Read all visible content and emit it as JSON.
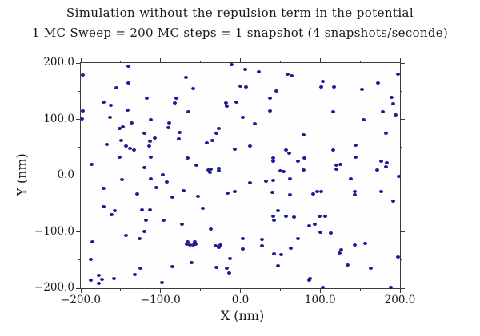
{
  "title": "Simulation without the repulsion term in the potential",
  "subtitle": "1 MC Sweep = 200 MC steps = 1 snapshot (4 snapshots/seconde)",
  "colors": {
    "marker": "#1c1c96",
    "axis": "#3a3a3a",
    "background": "#ffffff",
    "text": "#1a1a1a"
  },
  "chart_data": {
    "type": "scatter",
    "title": "Simulation without the repulsion term in the potential",
    "subtitle": "1 MC Sweep = 200 MC steps = 1 snapshot (4 snapshots/seconde)",
    "xlabel": "X (nm)",
    "ylabel": "Y (nm)",
    "xlim": [
      -200,
      200
    ],
    "ylim": [
      -200,
      200
    ],
    "grid": false,
    "legend": null,
    "marker_color": "#1c1c96",
    "x_major_ticks": [
      -200,
      -100,
      0,
      100,
      200
    ],
    "y_major_ticks": [
      -200,
      -100,
      0,
      100,
      200
    ],
    "x_minor_ticks": [
      -150,
      -50,
      50,
      150
    ],
    "y_minor_ticks": [
      -150,
      -50,
      50,
      150
    ],
    "x_tick_labels": [
      "−200.0",
      "−100.0",
      "0.0",
      "100.0",
      "200.0"
    ],
    "y_tick_labels": [
      "−200.0",
      "−100.0",
      "0.0",
      "100.0",
      "200.0"
    ],
    "points": [
      [
        -197,
        179
      ],
      [
        -140,
        194
      ],
      [
        -68,
        174
      ],
      [
        -155,
        156
      ],
      [
        -140,
        165
      ],
      [
        -59,
        154
      ],
      [
        -117,
        138
      ],
      [
        -80,
        137
      ],
      [
        -82,
        129
      ],
      [
        -171,
        131
      ],
      [
        -162,
        125
      ],
      [
        -18,
        129
      ],
      [
        -17,
        124
      ],
      [
        -5,
        131
      ],
      [
        -198,
        115
      ],
      [
        -141,
        117
      ],
      [
        -65,
        114
      ],
      [
        -199,
        101
      ],
      [
        -163,
        104
      ],
      [
        -112,
        100
      ],
      [
        -136,
        94
      ],
      [
        -89,
        94
      ],
      [
        -147,
        87
      ],
      [
        -151,
        83
      ],
      [
        -90,
        85
      ],
      [
        -120,
        75
      ],
      [
        -27,
        84
      ],
      [
        -30,
        75
      ],
      [
        -76,
        77
      ],
      [
        -149,
        62
      ],
      [
        -167,
        56
      ],
      [
        -113,
        61
      ],
      [
        -107,
        67
      ],
      [
        -77,
        65
      ],
      [
        -35,
        63
      ],
      [
        -42,
        58
      ],
      [
        -114,
        52
      ],
      [
        -143,
        52
      ],
      [
        -138,
        48
      ],
      [
        -133,
        46
      ],
      [
        -7,
        47
      ],
      [
        -151,
        33
      ],
      [
        -112,
        32
      ],
      [
        -66,
        31
      ],
      [
        -186,
        20
      ],
      [
        -120,
        14
      ],
      [
        -55,
        18
      ],
      [
        -40,
        10
      ],
      [
        -37,
        11
      ],
      [
        -27,
        13
      ],
      [
        -27,
        8
      ],
      [
        -97,
        2
      ],
      [
        -38,
        6
      ],
      [
        -11,
        197
      ],
      [
        6,
        188
      ],
      [
        23,
        185
      ],
      [
        59,
        180
      ],
      [
        64,
        178
      ],
      [
        197,
        180
      ],
      [
        103,
        168
      ],
      [
        101,
        157
      ],
      [
        117,
        157
      ],
      [
        0,
        159
      ],
      [
        7,
        157
      ],
      [
        152,
        153
      ],
      [
        172,
        164
      ],
      [
        45,
        150
      ],
      [
        37,
        138
      ],
      [
        189,
        139
      ],
      [
        191,
        128
      ],
      [
        37,
        115
      ],
      [
        116,
        114
      ],
      [
        178,
        114
      ],
      [
        3,
        103
      ],
      [
        194,
        108
      ],
      [
        18,
        92
      ],
      [
        154,
        100
      ],
      [
        79,
        72
      ],
      [
        182,
        75
      ],
      [
        12,
        52
      ],
      [
        144,
        54
      ],
      [
        57,
        46
      ],
      [
        61,
        40
      ],
      [
        116,
        45
      ],
      [
        41,
        31
      ],
      [
        41,
        26
      ],
      [
        144,
        33
      ],
      [
        72,
        25
      ],
      [
        80,
        31
      ],
      [
        176,
        26
      ],
      [
        183,
        23
      ],
      [
        120,
        18
      ],
      [
        125,
        20
      ],
      [
        120,
        12
      ],
      [
        50,
        9
      ],
      [
        54,
        7
      ],
      [
        79,
        10
      ],
      [
        171,
        10
      ],
      [
        182,
        16
      ],
      [
        198,
        -1
      ],
      [
        -148,
        -7
      ],
      [
        -112,
        -5
      ],
      [
        -171,
        -22
      ],
      [
        -92,
        -12
      ],
      [
        -105,
        -21
      ],
      [
        -129,
        -33
      ],
      [
        -71,
        -27
      ],
      [
        -85,
        -38
      ],
      [
        -53,
        -37
      ],
      [
        -16,
        -31
      ],
      [
        -7,
        -29
      ],
      [
        -171,
        -56
      ],
      [
        -157,
        -62
      ],
      [
        -161,
        -69
      ],
      [
        -123,
        -61
      ],
      [
        -113,
        -61
      ],
      [
        -47,
        -58
      ],
      [
        -118,
        -80
      ],
      [
        -96,
        -80
      ],
      [
        -73,
        -86
      ],
      [
        -37,
        -95
      ],
      [
        -120,
        -99
      ],
      [
        -143,
        -106
      ],
      [
        -126,
        -112
      ],
      [
        -185,
        -118
      ],
      [
        -66,
        -118
      ],
      [
        -57,
        -118
      ],
      [
        -67,
        -122
      ],
      [
        -63,
        -123
      ],
      [
        -59,
        -123
      ],
      [
        -56,
        -122
      ],
      [
        -31,
        -125
      ],
      [
        -27,
        -127
      ],
      [
        -25,
        -123
      ],
      [
        -187,
        -149
      ],
      [
        -13,
        -148
      ],
      [
        -61,
        -154
      ],
      [
        -85,
        -162
      ],
      [
        -125,
        -164
      ],
      [
        -30,
        -163
      ],
      [
        -17,
        -165
      ],
      [
        -14,
        -173
      ],
      [
        -132,
        -176
      ],
      [
        -177,
        -178
      ],
      [
        -173,
        -184
      ],
      [
        -187,
        -186
      ],
      [
        -177,
        -192
      ],
      [
        -158,
        -183
      ],
      [
        -98,
        -190
      ],
      [
        12,
        -13
      ],
      [
        32,
        -10
      ],
      [
        41,
        -9
      ],
      [
        62,
        -6
      ],
      [
        138,
        -6
      ],
      [
        40,
        -30
      ],
      [
        62,
        -34
      ],
      [
        91,
        -33
      ],
      [
        96,
        -29
      ],
      [
        101,
        -28
      ],
      [
        143,
        -28
      ],
      [
        143,
        -34
      ],
      [
        176,
        -28
      ],
      [
        191,
        -45
      ],
      [
        47,
        -62
      ],
      [
        41,
        -72
      ],
      [
        42,
        -80
      ],
      [
        57,
        -72
      ],
      [
        67,
        -74
      ],
      [
        99,
        -72
      ],
      [
        106,
        -72
      ],
      [
        93,
        -86
      ],
      [
        86,
        -89
      ],
      [
        100,
        -100
      ],
      [
        113,
        -102
      ],
      [
        3,
        -112
      ],
      [
        27,
        -113
      ],
      [
        72,
        -112
      ],
      [
        3,
        -131
      ],
      [
        27,
        -125
      ],
      [
        143,
        -123
      ],
      [
        156,
        -120
      ],
      [
        63,
        -129
      ],
      [
        42,
        -139
      ],
      [
        51,
        -140
      ],
      [
        126,
        -132
      ],
      [
        124,
        -138
      ],
      [
        197,
        -144
      ],
      [
        47,
        -160
      ],
      [
        134,
        -159
      ],
      [
        163,
        -165
      ],
      [
        87,
        -183
      ],
      [
        86,
        -186
      ],
      [
        103,
        -199
      ],
      [
        188,
        -199
      ]
    ]
  }
}
